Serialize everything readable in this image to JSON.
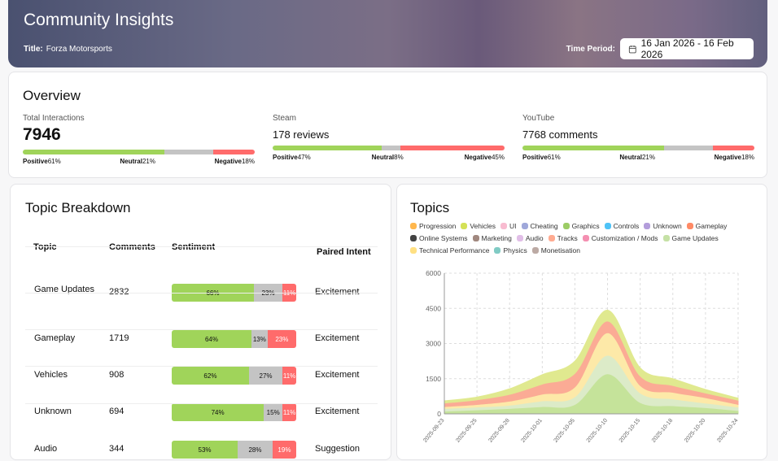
{
  "header": {
    "title": "Community Insights",
    "title_label": "Title:",
    "game": "Forza Motorsports",
    "period_label": "Time Period:",
    "period": "16 Jan 2026 - 16 Feb 2026"
  },
  "overview": {
    "heading": "Overview",
    "stats": [
      {
        "label": "Total Interactions",
        "value": "7946",
        "pos": 61,
        "neu": 21,
        "neg": 18
      },
      {
        "label": "Steam",
        "value": "178 reviews",
        "pos": 47,
        "neu": 8,
        "neg": 45
      },
      {
        "label": "YouTube",
        "value": "7768 comments",
        "pos": 61,
        "neu": 21,
        "neg": 18
      }
    ],
    "pos_label": "Positive",
    "neu_label": "Neutral",
    "neg_label": "Negative"
  },
  "breakdown": {
    "heading": "Topic Breakdown",
    "columns": [
      "Topic",
      "Comments",
      "Sentiment",
      "Paired Intent"
    ],
    "rows": [
      {
        "topic": "Game Updates",
        "comments": "2832",
        "pos": 66,
        "neu": 23,
        "neg": 11,
        "intent": "Excitement"
      },
      {
        "topic": "Gameplay",
        "comments": "1719",
        "pos": 64,
        "neu": 13,
        "neg": 23,
        "intent": "Excitement"
      },
      {
        "topic": "Vehicles",
        "comments": "908",
        "pos": 62,
        "neu": 27,
        "neg": 11,
        "intent": "Excitement"
      },
      {
        "topic": "Unknown",
        "comments": "694",
        "pos": 74,
        "neu": 15,
        "neg": 11,
        "intent": "Excitement"
      },
      {
        "topic": "Audio",
        "comments": "344",
        "pos": 53,
        "neu": 28,
        "neg": 19,
        "intent": "Suggestion"
      }
    ]
  },
  "topics": {
    "heading": "Topics",
    "legend": [
      {
        "name": "Progression",
        "color": "#ffb74d"
      },
      {
        "name": "Vehicles",
        "color": "#d4e157"
      },
      {
        "name": "UI",
        "color": "#f8bbd0"
      },
      {
        "name": "Cheating",
        "color": "#9fa8da"
      },
      {
        "name": "Graphics",
        "color": "#9ccc65"
      },
      {
        "name": "Controls",
        "color": "#4fc3f7"
      },
      {
        "name": "Unknown",
        "color": "#b39ddb"
      },
      {
        "name": "Gameplay",
        "color": "#ff8a65"
      },
      {
        "name": "Online Systems",
        "color": "#424242"
      },
      {
        "name": "Marketing",
        "color": "#a1887f"
      },
      {
        "name": "Audio",
        "color": "#e1bee7"
      },
      {
        "name": "Tracks",
        "color": "#ffab91"
      },
      {
        "name": "Customization / Mods",
        "color": "#f48fb1"
      },
      {
        "name": "Game Updates",
        "color": "#c5e1a5"
      },
      {
        "name": "Technical Performance",
        "color": "#ffe082"
      },
      {
        "name": "Physics",
        "color": "#80cbc4"
      },
      {
        "name": "Monetisation",
        "color": "#bcaaa4"
      }
    ]
  },
  "chart_data": {
    "type": "area",
    "stacked": true,
    "x": [
      "2025-09-23",
      "2025-09-25",
      "2025-09-28",
      "2025-10-01",
      "2025-10-05",
      "2025-10-10",
      "2025-10-15",
      "2025-10-18",
      "2025-10-20",
      "2025-10-24"
    ],
    "yticks": [
      0,
      1500,
      3000,
      4500,
      6000
    ],
    "ylim": [
      0,
      6000
    ],
    "grid": true,
    "series": [
      {
        "name": "Graphics",
        "color": "#c5e39a",
        "values": [
          115,
          170,
          230,
          310,
          400,
          1710,
          485,
          345,
          265,
          140
        ]
      },
      {
        "name": "Game Updates",
        "color": "#dcebc8",
        "values": [
          115,
          120,
          140,
          245,
          330,
          790,
          405,
          290,
          195,
          150
        ]
      },
      {
        "name": "Technical Performance",
        "color": "#fde9a8",
        "values": [
          80,
          110,
          170,
          285,
          420,
          960,
          320,
          285,
          230,
          110
        ]
      },
      {
        "name": "Gameplay",
        "color": "#fbab95",
        "values": [
          150,
          200,
          290,
          430,
          580,
          500,
          405,
          290,
          200,
          180
        ]
      },
      {
        "name": "Vehicles",
        "color": "#e0e98f",
        "values": [
          95,
          115,
          240,
          400,
          520,
          460,
          345,
          290,
          150,
          90
        ]
      }
    ]
  }
}
